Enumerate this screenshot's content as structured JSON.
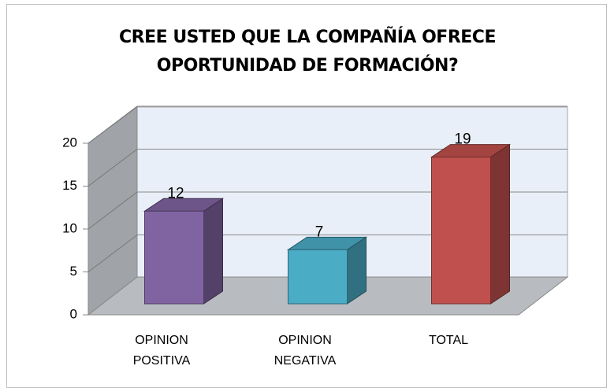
{
  "chart_data": {
    "type": "bar3d",
    "title": "CREE USTED QUE LA COMPAÑÍA OFRECE OPORTUNIDAD DE FORMACIÓN?",
    "categories": [
      "OPINION POSITIVA",
      "OPINION NEGATIVA",
      "TOTAL"
    ],
    "values": [
      12,
      7,
      19
    ],
    "colors": [
      "#8064a2",
      "#4bacc6",
      "#c0504d"
    ],
    "ylim": [
      0,
      20
    ],
    "yticks": [
      0,
      5,
      10,
      15,
      20
    ],
    "grid": true
  }
}
